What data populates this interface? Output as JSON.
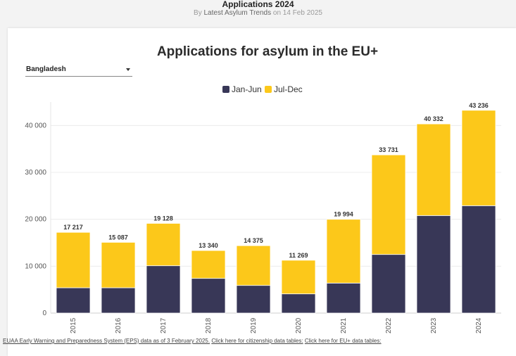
{
  "header": {
    "title": "Applications 2024",
    "by_text": "By",
    "by_link": "Latest Asylum Trends",
    "date_text": "on 14 Feb 2025"
  },
  "filter": {
    "selected": "Bangladesh"
  },
  "colors": {
    "jan_jun": "#383757",
    "jul_dec": "#fcc81a"
  },
  "chart_data": {
    "type": "bar",
    "stacked": true,
    "title": "Applications for asylum in the EU+",
    "categories": [
      "2015",
      "2016",
      "2017",
      "2018",
      "2019",
      "2020",
      "2021",
      "2022",
      "2023",
      "2024"
    ],
    "series": [
      {
        "name": "Jan-Jun",
        "values": [
          5400,
          5400,
          10100,
          7400,
          5900,
          4100,
          6400,
          12500,
          20800,
          22900
        ]
      },
      {
        "name": "Jul-Dec",
        "values": [
          11817,
          9687,
          9028,
          5940,
          8475,
          7169,
          13594,
          21231,
          19532,
          20336
        ]
      }
    ],
    "totals": [
      17217,
      15087,
      19128,
      13340,
      14375,
      11269,
      19994,
      33731,
      40332,
      43236
    ],
    "total_labels": [
      "17 217",
      "15 087",
      "19 128",
      "13 340",
      "14 375",
      "11 269",
      "19 994",
      "33 731",
      "40 332",
      "43 236"
    ],
    "yticks": [
      0,
      10000,
      20000,
      30000,
      40000
    ],
    "ytick_labels": [
      "0",
      "10 000",
      "20 000",
      "30 000",
      "40 000"
    ],
    "ylim": [
      0,
      45000
    ],
    "xlabel": "",
    "ylabel": "",
    "grid": true,
    "legend_position": "top-center"
  },
  "footer": {
    "source": "EUAA Early Warning and Preparedness System (EPS) data as of 3 February 2025.",
    "citizenship_link": "Click here for citizenship data tables:",
    "eu_link": "Click here for EU+ data tables:"
  }
}
